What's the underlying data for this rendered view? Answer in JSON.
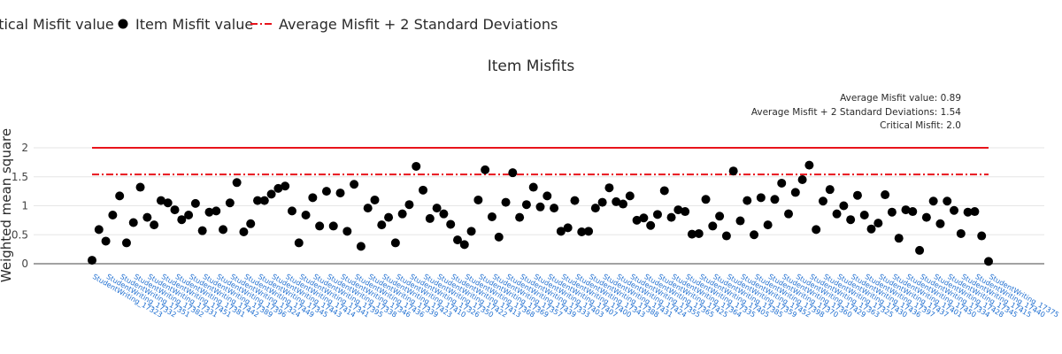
{
  "legend": {
    "critical_label": "Critical Misfit value",
    "item_label": "Item Misfit value",
    "average_label": "Average Misfit + 2 Standard Deviations"
  },
  "colors": {
    "critical": "#e8141c",
    "average": "#e8141c",
    "points": "#000000",
    "tick_labels": "#1f6fd1",
    "grid": "#e6e6e6"
  },
  "chart_data": {
    "type": "scatter",
    "title": "Item Misfits",
    "ylabel": "Weighted mean square",
    "ylim": [
      0,
      2.1
    ],
    "yticks": [
      0,
      0.5,
      1,
      1.5,
      2
    ],
    "critical_misfit": 2.0,
    "average_plus_2sd": 1.54,
    "annotations": [
      "Average Misfit value: 0.89",
      "Average Misfit + 2 Standard Deviations: 1.54",
      "Critical Misfit: 2.0"
    ],
    "tick_labels": [
      "StudentWriting_17323",
      "StudentWriting_17332",
      "StudentWriting_17351",
      "StudentWriting_17382",
      "StudentWriting_17331",
      "StudentWriting_17451",
      "StudentWriting_17381",
      "StudentWriting_17442",
      "StudentWriting_17389",
      "StudentWriting_17396",
      "StudentWriting_17324",
      "StudentWriting_17449",
      "StudentWriting_17345",
      "StudentWriting_17443",
      "StudentWriting_17414",
      "StudentWriting_17341",
      "StudentWriting_17395",
      "StudentWriting_17338",
      "StudentWriting_17346",
      "StudentWriting_17436",
      "StudentWriting_17339",
      "StudentWriting_17423",
      "StudentWriting_17410",
      "StudentWriting_17326",
      "StudentWriting_17350",
      "StudentWriting_17422",
      "StudentWriting_17413",
      "StudentWriting_17368",
      "StudentWriting_17369",
      "StudentWriting_17357",
      "StudentWriting_17439",
      "StudentWriting_17333",
      "StudentWriting_17403",
      "StudentWriting_17407",
      "StudentWriting_17400",
      "StudentWriting_17343",
      "StudentWriting_17388",
      "StudentWriting_17431",
      "StudentWriting_17424",
      "StudentWriting_17355",
      "StudentWriting_17365",
      "StudentWriting_17425",
      "StudentWriting_17364",
      "StudentWriting_17335",
      "StudentWriting_17405",
      "StudentWriting_17385",
      "StudentWriting_17359",
      "StudentWriting_17452",
      "StudentWriting_17398",
      "StudentWriting_17370",
      "StudentWriting_17360",
      "StudentWriting_17429",
      "StudentWriting_17363",
      "StudentWriting_17325",
      "StudentWriting_17430",
      "StudentWriting_17436",
      "StudentWriting_17397",
      "StudentWriting_17437",
      "StudentWriting_17401",
      "StudentWriting_17450",
      "StudentWriting_17334",
      "StudentWriting_17428",
      "StudentWriting_17345",
      "StudentWriting_17415",
      "StudentWriting_17440",
      "StudentWriting_17375"
    ],
    "values": [
      0.06,
      0.59,
      0.39,
      0.84,
      1.17,
      0.36,
      0.71,
      1.32,
      0.8,
      0.67,
      1.09,
      1.05,
      0.93,
      0.76,
      0.84,
      1.04,
      0.57,
      0.89,
      0.91,
      0.59,
      1.05,
      1.4,
      0.55,
      0.69,
      1.09,
      1.09,
      1.2,
      1.3,
      1.34,
      0.91,
      0.36,
      0.84,
      1.14,
      0.65,
      1.25,
      0.65,
      1.22,
      0.56,
      1.37,
      0.3,
      0.96,
      1.1,
      0.67,
      0.8,
      0.36,
      0.86,
      1.02,
      1.68,
      1.27,
      0.78,
      0.96,
      0.86,
      0.68,
      0.41,
      0.33,
      0.56,
      1.1,
      1.62,
      0.81,
      0.46,
      1.06,
      1.57,
      0.8,
      1.02,
      1.32,
      0.98,
      1.17,
      0.96,
      0.56,
      0.62,
      1.09,
      0.55,
      0.56,
      0.96,
      1.06,
      1.31,
      1.07,
      1.03,
      1.17,
      0.75,
      0.79,
      0.66,
      0.85,
      1.26,
      0.8,
      0.93,
      0.9,
      0.51,
      0.52,
      1.11,
      0.65,
      0.82,
      0.48,
      1.6,
      0.74,
      1.09,
      0.5,
      1.14,
      0.67,
      1.11,
      1.39,
      0.86,
      1.23,
      1.45,
      1.7,
      0.59,
      1.08,
      1.28,
      0.86,
      1.0,
      0.76,
      1.18,
      0.84,
      0.6,
      0.7,
      1.19,
      0.89,
      0.44,
      0.93,
      0.9,
      0.23,
      0.8,
      1.08,
      0.69,
      1.08,
      0.92,
      0.52,
      0.89,
      0.9,
      0.48,
      0.04
    ]
  }
}
